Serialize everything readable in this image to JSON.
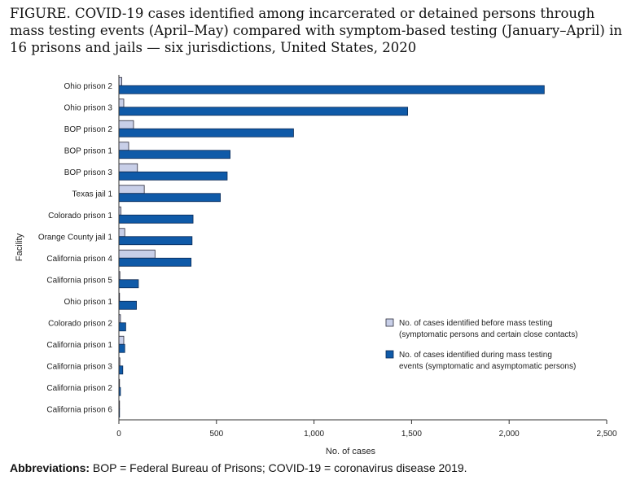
{
  "title": "FIGURE. COVID-19 cases identified among incarcerated or detained persons through mass testing events (April–May) compared with symptom-based testing (January–April) in 16 prisons and jails — six jurisdictions, United States, 2020",
  "footnote": {
    "label": "Abbreviations:",
    "text": " BOP = Federal Bureau of Prisons; COVID-19 = coronavirus disease 2019."
  },
  "chart_data": {
    "type": "bar",
    "orientation": "horizontal",
    "xlabel": "No. of cases",
    "ylabel": "Facility",
    "xlim": [
      0,
      2500
    ],
    "xticks": [
      0,
      500,
      1000,
      1500,
      2000,
      2500
    ],
    "xtick_labels": [
      "0",
      "500",
      "1,000",
      "1,500",
      "2,000",
      "2,500"
    ],
    "grid": false,
    "legend_position": "lower-right",
    "categories": [
      "Ohio prison 2",
      "Ohio prison 3",
      "BOP prison 2",
      "BOP prison 1",
      "BOP prison 3",
      "Texas jail 1",
      "Colorado prison 1",
      "Orange County jail 1",
      "California prison 4",
      "California prison 5",
      "Ohio prison 1",
      "Colorado prison 2",
      "California prison 1",
      "California prison 3",
      "California prison 2",
      "California prison 6"
    ],
    "series": [
      {
        "name": "No. of cases identified before mass testing (symptomatic persons and certain close contacts)",
        "legend_lines": [
          "No. of cases identified before mass testing",
          "(symptomatic persons and certain close contacts)"
        ],
        "color": "#c8cfe8",
        "stroke": "#2a2a3a",
        "values": [
          15,
          25,
          75,
          50,
          95,
          130,
          10,
          30,
          185,
          5,
          3,
          8,
          25,
          5,
          2,
          1
        ]
      },
      {
        "name": "No. of cases identified during mass testing events (symptomatic and asymptomatic persons)",
        "legend_lines": [
          "No. of cases identified during mass testing",
          "events (symptomatic and asymptomatic persons)"
        ],
        "color": "#0f5aa8",
        "stroke": "#0a2a55",
        "values": [
          2180,
          1480,
          895,
          570,
          555,
          520,
          380,
          375,
          370,
          100,
          90,
          35,
          30,
          20,
          8,
          2
        ]
      }
    ]
  }
}
